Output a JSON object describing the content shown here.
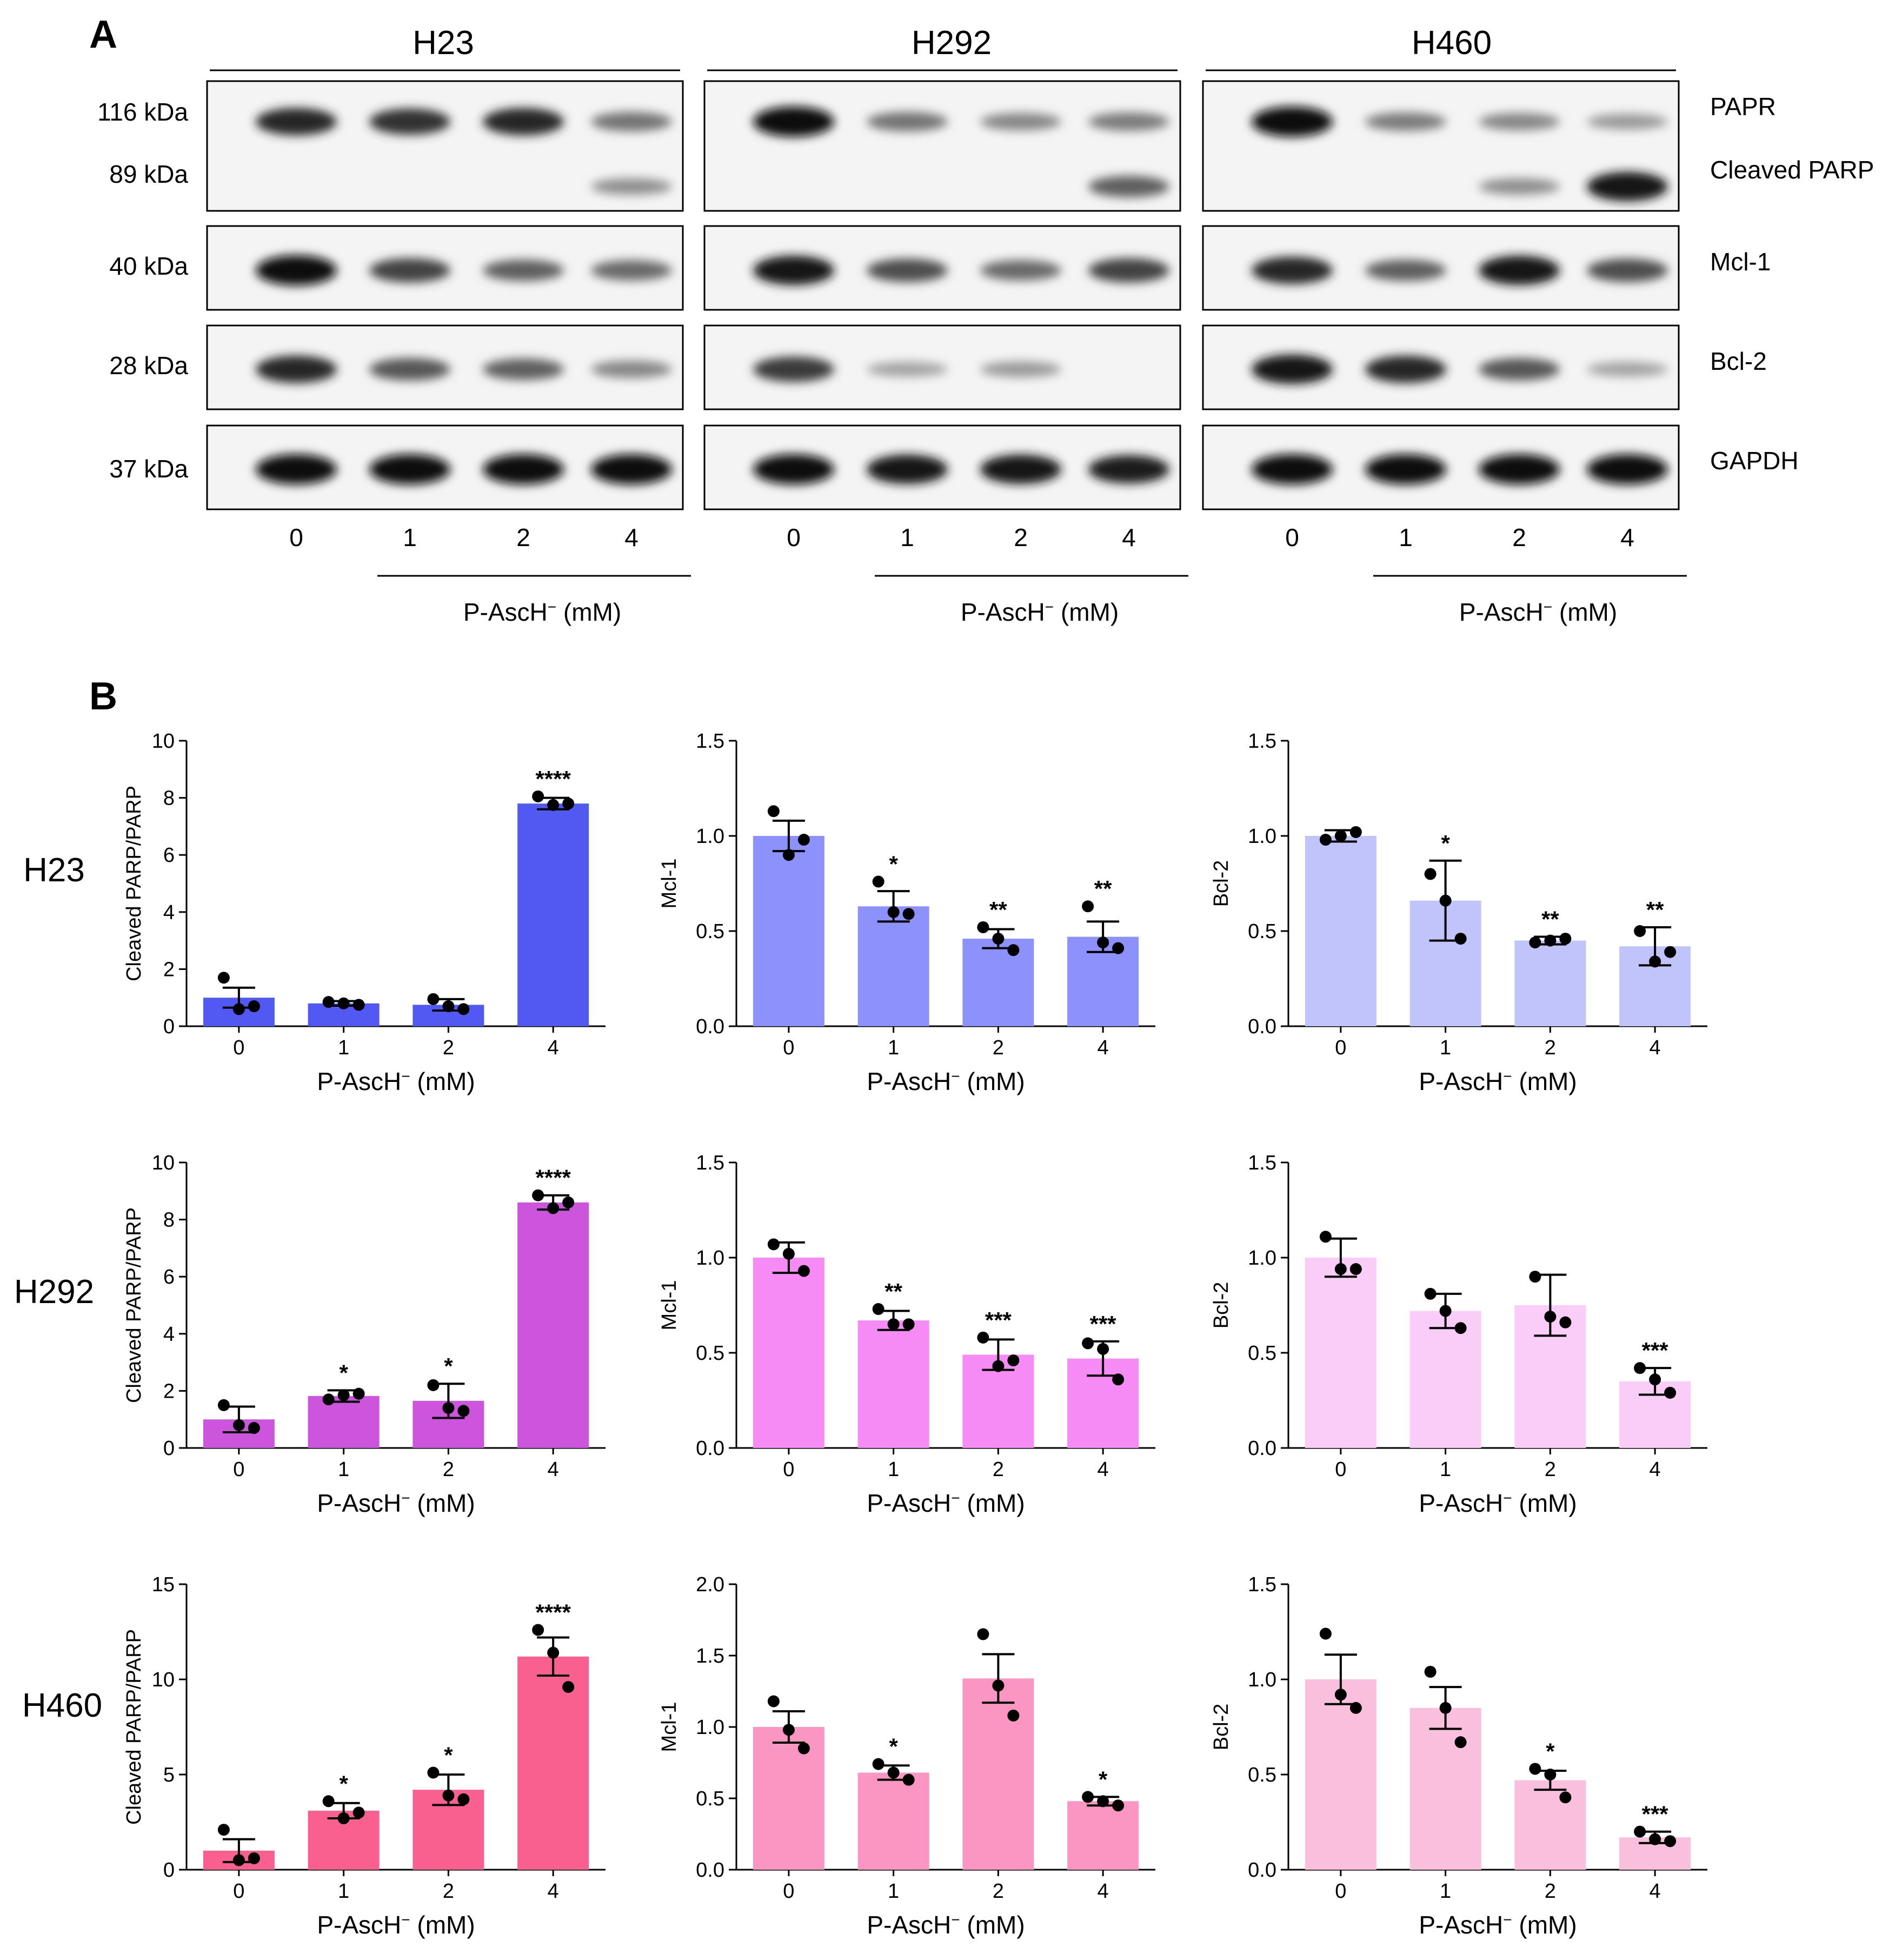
{
  "panel_a": {
    "letter": "A",
    "cell_lines": [
      "H23",
      "H292",
      "H460"
    ],
    "kda_labels": [
      "116 kDa",
      "89 kDa",
      "40 kDa",
      "28 kDa",
      "37 kDa"
    ],
    "protein_labels": [
      "PAPR",
      "Cleaved PARP",
      "Mcl-1",
      "Bcl-2",
      "GAPDH"
    ],
    "lane_labels": [
      "0",
      "1",
      "2",
      "4"
    ],
    "treatment_label": "P-AscH",
    "treatment_sup": "−",
    "treatment_unit": "(mM)",
    "blot_intensity": {
      "H23": {
        "parp": [
          0.85,
          0.8,
          0.85,
          0.45
        ],
        "cleaved": [
          0,
          0,
          0,
          0.3
        ],
        "mcl1": [
          1.0,
          0.7,
          0.55,
          0.5
        ],
        "bcl2": [
          0.85,
          0.6,
          0.55,
          0.35
        ],
        "gapdh": [
          1,
          1,
          1,
          1
        ]
      },
      "H292": {
        "parp": [
          1.0,
          0.45,
          0.35,
          0.4
        ],
        "cleaved": [
          0,
          0,
          0,
          0.55
        ],
        "mcl1": [
          0.95,
          0.65,
          0.5,
          0.7
        ],
        "bcl2": [
          0.75,
          0.2,
          0.25,
          0.0
        ],
        "gapdh": [
          1,
          0.95,
          0.95,
          0.9
        ]
      },
      "H460": {
        "parp": [
          1.0,
          0.4,
          0.35,
          0.25
        ],
        "cleaved": [
          0,
          0,
          0.3,
          0.95
        ],
        "mcl1": [
          0.85,
          0.55,
          0.95,
          0.65
        ],
        "bcl2": [
          0.95,
          0.85,
          0.6,
          0.2
        ],
        "gapdh": [
          1,
          1,
          1,
          1
        ]
      }
    }
  },
  "panel_b": {
    "letter": "B",
    "row_labels": [
      "H23",
      "H292",
      "H460"
    ]
  },
  "chart_data": [
    {
      "type": "bar",
      "row": "H23",
      "categories": [
        "0",
        "1",
        "2",
        "4"
      ],
      "values": [
        1.0,
        0.8,
        0.75,
        7.8
      ],
      "err": [
        0.35,
        0.08,
        0.2,
        0.2
      ],
      "points": [
        [
          1.7,
          0.6,
          0.7
        ],
        [
          0.85,
          0.8,
          0.75
        ],
        [
          0.95,
          0.7,
          0.6
        ],
        [
          8.05,
          7.75,
          7.8
        ]
      ],
      "significance": [
        "",
        "",
        "",
        "****"
      ],
      "ylabel": "Cleaved PARP/PARP",
      "xlabel": "P-AscH",
      "xlabel_sup": "−",
      "xlabel_unit": "(mM)",
      "ylim": [
        0,
        10
      ],
      "yticks": [
        "0",
        "2",
        "4",
        "6",
        "8",
        "10"
      ],
      "color": "#5159f2"
    },
    {
      "type": "bar",
      "row": "H23",
      "categories": [
        "0",
        "1",
        "2",
        "4"
      ],
      "values": [
        1.0,
        0.63,
        0.46,
        0.47
      ],
      "err": [
        0.08,
        0.08,
        0.05,
        0.08
      ],
      "points": [
        [
          1.13,
          0.9,
          0.98
        ],
        [
          0.76,
          0.6,
          0.59
        ],
        [
          0.52,
          0.46,
          0.4
        ],
        [
          0.63,
          0.44,
          0.41
        ]
      ],
      "significance": [
        "",
        "*",
        "**",
        "**"
      ],
      "ylabel": "Mcl-1",
      "xlabel": "P-AscH",
      "xlabel_sup": "−",
      "xlabel_unit": "(mM)",
      "ylim": [
        0,
        1.5
      ],
      "yticks": [
        "0.0",
        "0.5",
        "1.0",
        "1.5"
      ],
      "color": "#8d91fb"
    },
    {
      "type": "bar",
      "row": "H23",
      "categories": [
        "0",
        "1",
        "2",
        "4"
      ],
      "values": [
        1.0,
        0.66,
        0.45,
        0.42
      ],
      "err": [
        0.03,
        0.21,
        0.02,
        0.1
      ],
      "points": [
        [
          0.98,
          1.0,
          1.02
        ],
        [
          0.8,
          0.66,
          0.46
        ],
        [
          0.44,
          0.45,
          0.46
        ],
        [
          0.5,
          0.34,
          0.39
        ]
      ],
      "significance": [
        "",
        "*",
        "**",
        "**"
      ],
      "ylabel": "Bcl-2",
      "xlabel": "P-AscH",
      "xlabel_sup": "−",
      "xlabel_unit": "(mM)",
      "ylim": [
        0,
        1.5
      ],
      "yticks": [
        "0.0",
        "0.5",
        "1.0",
        "1.5"
      ],
      "color": "#c1c3fb"
    },
    {
      "type": "bar",
      "row": "H292",
      "categories": [
        "0",
        "1",
        "2",
        "4"
      ],
      "values": [
        1.0,
        1.82,
        1.65,
        8.6
      ],
      "err": [
        0.45,
        0.2,
        0.6,
        0.25
      ],
      "points": [
        [
          1.5,
          0.8,
          0.7
        ],
        [
          1.7,
          1.85,
          1.9
        ],
        [
          2.2,
          1.4,
          1.3
        ],
        [
          8.85,
          8.4,
          8.6
        ]
      ],
      "significance": [
        "",
        "*",
        "*",
        "****"
      ],
      "ylabel": "Cleaved PARP/PARP",
      "xlabel": "P-AscH",
      "xlabel_sup": "−",
      "xlabel_unit": "(mM)",
      "ylim": [
        0,
        10
      ],
      "yticks": [
        "0",
        "2",
        "4",
        "6",
        "8",
        "10"
      ],
      "color": "#cd55dd"
    },
    {
      "type": "bar",
      "row": "H292",
      "categories": [
        "0",
        "1",
        "2",
        "4"
      ],
      "values": [
        1.0,
        0.67,
        0.49,
        0.47
      ],
      "err": [
        0.08,
        0.05,
        0.08,
        0.09
      ],
      "points": [
        [
          1.07,
          1.02,
          0.93
        ],
        [
          0.73,
          0.65,
          0.65
        ],
        [
          0.58,
          0.43,
          0.46
        ],
        [
          0.55,
          0.52,
          0.36
        ]
      ],
      "significance": [
        "",
        "**",
        "***",
        "***"
      ],
      "ylabel": "Mcl-1",
      "xlabel": "P-AscH",
      "xlabel_sup": "−",
      "xlabel_unit": "(mM)",
      "ylim": [
        0,
        1.5
      ],
      "yticks": [
        "0.0",
        "0.5",
        "1.0",
        "1.5"
      ],
      "color": "#f68bf5"
    },
    {
      "type": "bar",
      "row": "H292",
      "categories": [
        "0",
        "1",
        "2",
        "4"
      ],
      "values": [
        1.0,
        0.72,
        0.75,
        0.35
      ],
      "err": [
        0.1,
        0.09,
        0.16,
        0.07
      ],
      "points": [
        [
          1.11,
          0.94,
          0.94
        ],
        [
          0.81,
          0.72,
          0.63
        ],
        [
          0.9,
          0.69,
          0.66
        ],
        [
          0.42,
          0.36,
          0.29
        ]
      ],
      "significance": [
        "",
        "",
        "",
        "***"
      ],
      "ylabel": "Bcl-2",
      "xlabel": "P-AscH",
      "xlabel_sup": "−",
      "xlabel_unit": "(mM)",
      "ylim": [
        0,
        1.5
      ],
      "yticks": [
        "0.0",
        "0.5",
        "1.0",
        "1.5"
      ],
      "color": "#f9cdf8"
    },
    {
      "type": "bar",
      "row": "H460",
      "categories": [
        "0",
        "1",
        "2",
        "4"
      ],
      "values": [
        1.0,
        3.1,
        4.2,
        11.2
      ],
      "err": [
        0.6,
        0.4,
        0.8,
        1.0
      ],
      "points": [
        [
          2.1,
          0.5,
          0.6
        ],
        [
          3.6,
          2.7,
          3.0
        ],
        [
          5.1,
          3.9,
          3.7
        ],
        [
          12.6,
          11.4,
          9.6
        ]
      ],
      "significance": [
        "",
        "*",
        "*",
        "****"
      ],
      "ylabel": "Cleaved PARP/PARP",
      "xlabel": "P-AscH",
      "xlabel_sup": "−",
      "xlabel_unit": "(mM)",
      "ylim": [
        0,
        15
      ],
      "yticks": [
        "0",
        "5",
        "10",
        "15"
      ],
      "color": "#f9608f"
    },
    {
      "type": "bar",
      "row": "H460",
      "categories": [
        "0",
        "1",
        "2",
        "4"
      ],
      "values": [
        1.0,
        0.68,
        1.34,
        0.48
      ],
      "err": [
        0.11,
        0.05,
        0.17,
        0.03
      ],
      "points": [
        [
          1.18,
          0.98,
          0.85
        ],
        [
          0.74,
          0.68,
          0.63
        ],
        [
          1.65,
          1.29,
          1.08
        ],
        [
          0.51,
          0.48,
          0.45
        ]
      ],
      "significance": [
        "",
        "*",
        "",
        "*"
      ],
      "ylabel": "Mcl-1",
      "xlabel": "P-AscH",
      "xlabel_sup": "−",
      "xlabel_unit": "(mM)",
      "ylim": [
        0,
        2.0
      ],
      "yticks": [
        "0.0",
        "0.5",
        "1.0",
        "1.5",
        "2.0"
      ],
      "color": "#fa96c1"
    },
    {
      "type": "bar",
      "row": "H460",
      "categories": [
        "0",
        "1",
        "2",
        "4"
      ],
      "values": [
        1.0,
        0.85,
        0.47,
        0.17
      ],
      "err": [
        0.13,
        0.11,
        0.05,
        0.03
      ],
      "points": [
        [
          1.24,
          0.92,
          0.85
        ],
        [
          1.04,
          0.85,
          0.67
        ],
        [
          0.53,
          0.5,
          0.38
        ],
        [
          0.2,
          0.16,
          0.15
        ]
      ],
      "significance": [
        "",
        "",
        "*",
        "***"
      ],
      "ylabel": "Bcl-2",
      "xlabel": "P-AscH",
      "xlabel_sup": "−",
      "xlabel_unit": "(mM)",
      "ylim": [
        0,
        1.5
      ],
      "yticks": [
        "0.0",
        "0.5",
        "1.0",
        "1.5"
      ],
      "color": "#fbbfde"
    }
  ]
}
